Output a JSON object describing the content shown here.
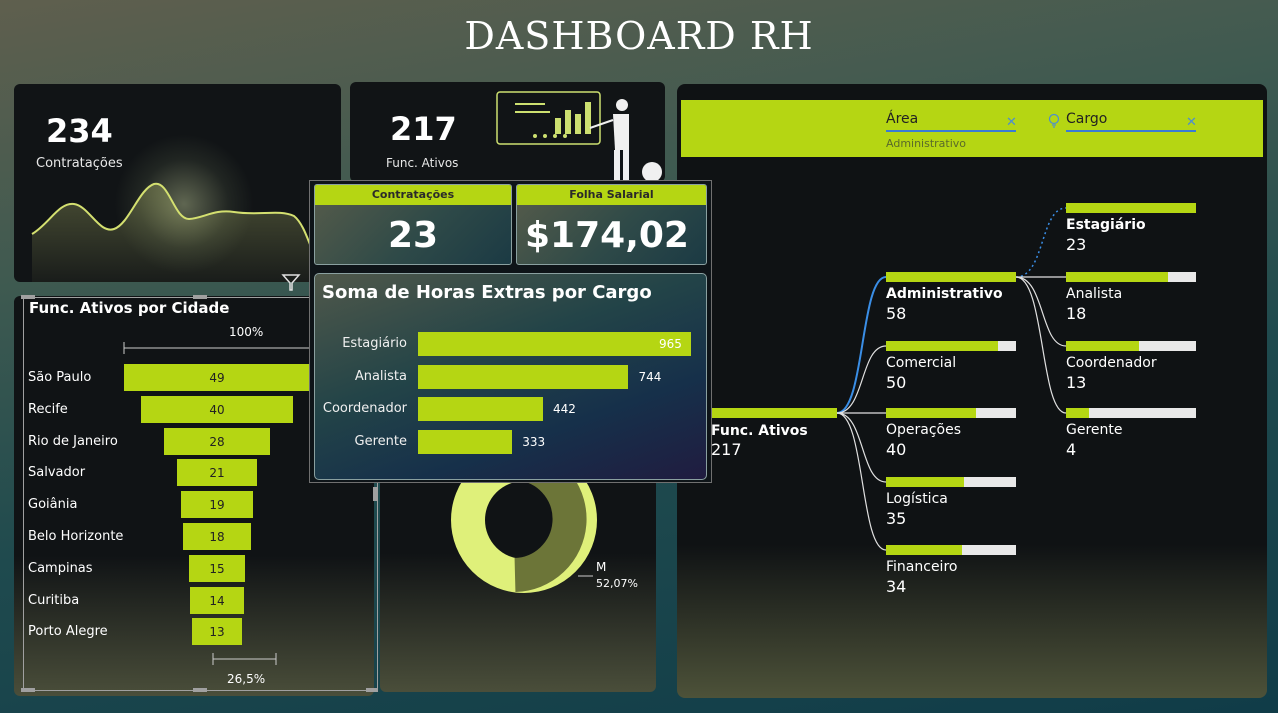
{
  "title": "DASHBOARD RH",
  "kpi_contratacoes": {
    "value": "234",
    "label": "Contratações"
  },
  "kpi_ativos": {
    "value": "217",
    "label": "Func. Ativos"
  },
  "funnel": {
    "title": "Func. Ativos por Cidade",
    "top_pct": "100%",
    "bottom_pct": "26,5%",
    "cities": [
      {
        "name": "São Paulo",
        "value": 49
      },
      {
        "name": "Recife",
        "value": 40
      },
      {
        "name": "Rio de Janeiro",
        "value": 28
      },
      {
        "name": "Salvador",
        "value": 21
      },
      {
        "name": "Goiânia",
        "value": 19
      },
      {
        "name": "Belo Horizonte",
        "value": 18
      },
      {
        "name": "Campinas",
        "value": 15
      },
      {
        "name": "Curitiba",
        "value": 14
      },
      {
        "name": "Porto Alegre",
        "value": 13
      }
    ]
  },
  "donut": {
    "label": "M",
    "pct": "52,07%"
  },
  "tooltip": {
    "card1": {
      "header": "Contratações",
      "value": "23"
    },
    "card2": {
      "header": "Folha Salarial",
      "value": "$174,02 ..."
    },
    "chart_title": "Soma de Horas Extras por Cargo"
  },
  "chart_data": {
    "type": "bar",
    "title": "Soma de Horas Extras por Cargo",
    "categories": [
      "Estagiário",
      "Analista",
      "Coordenador",
      "Gerente"
    ],
    "values": [
      965,
      744,
      442,
      333
    ]
  },
  "slicers": {
    "area": {
      "label": "Área",
      "value": "Administrativo"
    },
    "cargo": {
      "label": "Cargo"
    }
  },
  "tree": {
    "root": {
      "label": "Func. Ativos",
      "value": "217"
    },
    "areas": [
      {
        "label": "Administrativo",
        "value": "58",
        "frac": 1.0
      },
      {
        "label": "Comercial",
        "value": "50",
        "frac": 0.862
      },
      {
        "label": "Operações",
        "value": "40",
        "frac": 0.69
      },
      {
        "label": "Logística",
        "value": "35",
        "frac": 0.603
      },
      {
        "label": "Financeiro",
        "value": "34",
        "frac": 0.586
      }
    ],
    "cargos": [
      {
        "label": "Estagiário",
        "value": "23",
        "frac": 1.0
      },
      {
        "label": "Analista",
        "value": "18",
        "frac": 0.783
      },
      {
        "label": "Coordenador",
        "value": "13",
        "frac": 0.565
      },
      {
        "label": "Gerente",
        "value": "4",
        "frac": 0.174
      }
    ]
  },
  "colors": {
    "accent": "#b5d613",
    "link_blue": "#3a8ee6"
  }
}
